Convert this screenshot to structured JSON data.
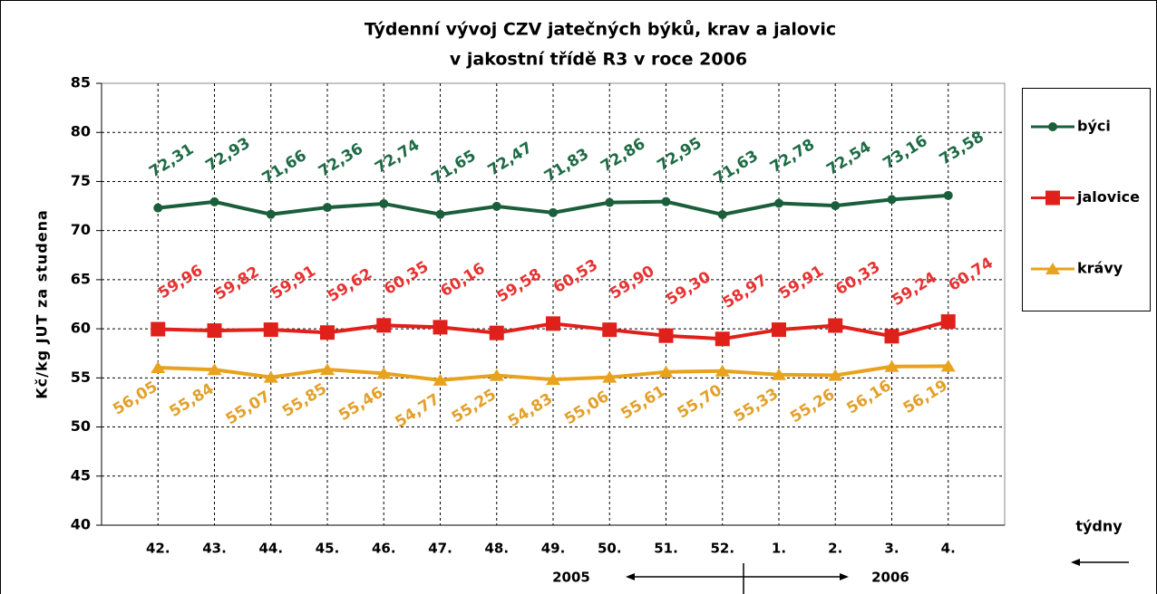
{
  "chart_data": {
    "type": "line",
    "title": [
      "Týdenní vývoj CZV jatečných býků, krav a jalovic",
      "v jakostní třídě R3   v roce 2006"
    ],
    "y_label": "Kč/kg JUT za studena",
    "x_label": "týdny",
    "annotations": [
      "2005",
      "2006"
    ],
    "categories": [
      "42.",
      "43.",
      "44.",
      "45.",
      "46.",
      "47.",
      "48.",
      "49.",
      "50.",
      "51.",
      "52.",
      "1.",
      "2.",
      "3.",
      "4."
    ],
    "series": [
      {
        "name": "býci",
        "color": "#1b5e3b",
        "label_color": "#1e6b45",
        "marker": "circle",
        "values": [
          72.31,
          72.93,
          71.66,
          72.36,
          72.74,
          71.65,
          72.47,
          71.83,
          72.86,
          72.95,
          71.63,
          72.78,
          72.54,
          73.16,
          73.58
        ],
        "value_labels": [
          "72,31",
          "72,93",
          "71,66",
          "72,36",
          "72,74",
          "71,65",
          "72,47",
          "71,83",
          "72,86",
          "72,95",
          "71,63",
          "72,78",
          "72,54",
          "73,16",
          "73,58"
        ]
      },
      {
        "name": "jalovice",
        "color": "#e0201b",
        "label_color": "#e83232",
        "marker": "square",
        "values": [
          59.96,
          59.82,
          59.91,
          59.62,
          60.35,
          60.16,
          59.58,
          60.53,
          59.9,
          59.3,
          58.97,
          59.91,
          60.33,
          59.24,
          60.74
        ],
        "value_labels": [
          "59,96",
          "59,82",
          "59,91",
          "59,62",
          "60,35",
          "60,16",
          "59,58",
          "60,53",
          "59,90",
          "59,30",
          "58,97",
          "59,91",
          "60,33",
          "59,24",
          "60,74"
        ]
      },
      {
        "name": "krávy",
        "color": "#e8a21e",
        "label_color": "#e3a02a",
        "marker": "triangle",
        "values": [
          56.05,
          55.84,
          55.07,
          55.85,
          55.46,
          54.77,
          55.25,
          54.83,
          55.06,
          55.61,
          55.7,
          55.33,
          55.26,
          56.16,
          56.19
        ],
        "value_labels": [
          "56,05",
          "55,84",
          "55,07",
          "55,85",
          "55,46",
          "54,77",
          "55,25",
          "54,83",
          "55,06",
          "55,61",
          "55,70",
          "55,33",
          "55,26",
          "56,16",
          "56,19"
        ]
      }
    ],
    "ylim": [
      40,
      85
    ],
    "yticks": [
      40,
      45,
      50,
      55,
      60,
      65,
      70,
      75,
      80,
      85
    ],
    "grid": true
  }
}
